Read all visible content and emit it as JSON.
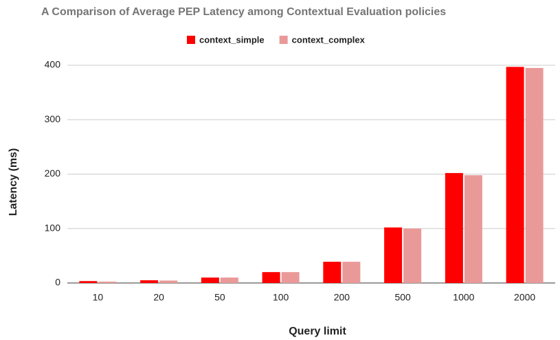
{
  "chart_data": {
    "type": "bar",
    "title": "A Comparison of Average PEP Latency among Contextual Evaluation policies",
    "x_label": "Query limit",
    "y_label": "Latency (ms)",
    "categories": [
      "10",
      "20",
      "50",
      "100",
      "200",
      "500",
      "1000",
      "2000"
    ],
    "series": [
      {
        "name": "context_simple",
        "color": "#ff0000",
        "values": [
          3.5,
          5,
          10,
          20,
          39,
          102,
          202,
          397
        ]
      },
      {
        "name": "context_complex",
        "color": "#ea9999",
        "values": [
          2.5,
          4.5,
          10,
          20,
          39,
          100,
          198,
          395
        ]
      }
    ],
    "ylim": [
      0,
      400
    ],
    "yticks": [
      0,
      100,
      200,
      300,
      400
    ],
    "grid": true,
    "legend": "top"
  }
}
